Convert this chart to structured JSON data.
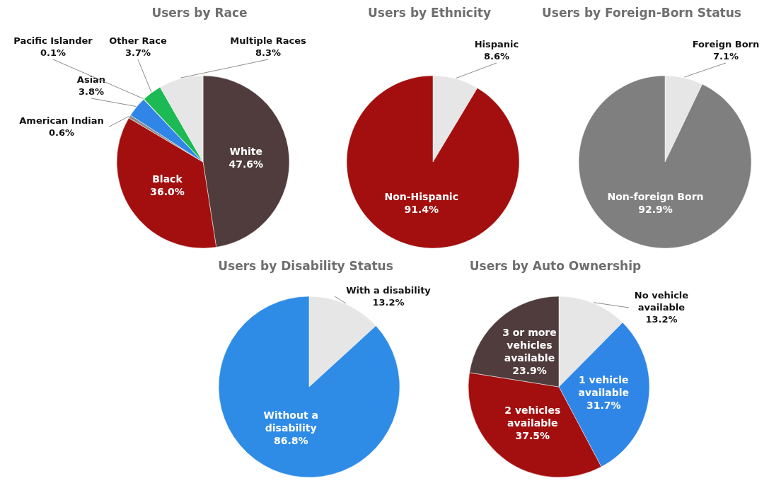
{
  "chart_data": [
    {
      "type": "pie",
      "title": "Users by Race",
      "categories": [
        "White",
        "Black",
        "American Indian",
        "Asian",
        "Pacific Islander",
        "Other Race",
        "Multiple Races"
      ],
      "values": [
        47.6,
        36.0,
        0.6,
        3.8,
        0.1,
        3.7,
        8.3
      ],
      "value_labels": [
        "47.6%",
        "36.0%",
        "0.6%",
        "3.8%",
        "0.1%",
        "3.7%",
        "8.3%"
      ],
      "colors": [
        "#503c3c",
        "#a30e0e",
        "#8c8c8c",
        "#2f86e6",
        "#b0b0b0",
        "#1db954",
        "#e6e6e6"
      ]
    },
    {
      "type": "pie",
      "title": "Users by Ethnicity",
      "categories": [
        "Hispanic",
        "Non-Hispanic"
      ],
      "values": [
        8.6,
        91.4
      ],
      "value_labels": [
        "8.6%",
        "91.4%"
      ],
      "colors": [
        "#e6e6e6",
        "#a30e0e"
      ]
    },
    {
      "type": "pie",
      "title": "Users by Foreign-Born Status",
      "categories": [
        "Foreign Born",
        "Non-foreign Born"
      ],
      "values": [
        7.1,
        92.9
      ],
      "value_labels": [
        "7.1%",
        "92.9%"
      ],
      "colors": [
        "#e6e6e6",
        "#7f7f7f"
      ]
    },
    {
      "type": "pie",
      "title": "Users by Disability Status",
      "categories": [
        "With a disability",
        "Without a disability"
      ],
      "values": [
        13.2,
        86.8
      ],
      "value_labels": [
        "13.2%",
        "86.8%"
      ],
      "colors": [
        "#e6e6e6",
        "#2f8ce6"
      ]
    },
    {
      "type": "pie",
      "title": "Users by Auto Ownership",
      "categories": [
        "No vehicle available",
        "1 vehicle available",
        "2 vehicles available",
        "3 or more vehicles available"
      ],
      "values": [
        13.2,
        31.7,
        37.5,
        23.9
      ],
      "value_labels": [
        "13.2%",
        "31.7%",
        "37.5%",
        "23.9%"
      ],
      "colors": [
        "#e6e6e6",
        "#2f86e6",
        "#a30e0e",
        "#503c3c"
      ]
    }
  ]
}
